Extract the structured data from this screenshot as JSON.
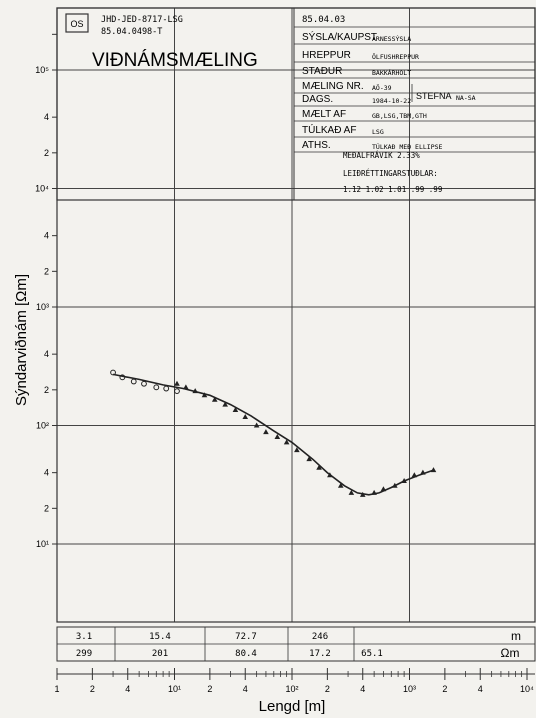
{
  "header": {
    "logo_glyph": "OS",
    "ref_line1": "JHD-JED-8717-LSG",
    "ref_line2": "85.04.0498-T",
    "title": "VIÐNÁMSMÆLING",
    "date_stamp": "85.04.03",
    "fields": [
      {
        "label": "SÝSLA/KAUPST",
        "value": "ÁRNESSÝSLA"
      },
      {
        "label": "HREPPUR",
        "value": "ÖLFUSHREPPUR"
      },
      {
        "label": "STAÐUR",
        "value": "BAKKÁRHOLT"
      },
      {
        "label": "MÆLING NR.",
        "value": "AÖ-39"
      },
      {
        "label": "DAGS.",
        "value": "1984-10-22"
      },
      {
        "label": "MÆLT AF",
        "value": "GB,LSG,TBM,GTH"
      },
      {
        "label": "TÚLKAÐ AF",
        "value": "LSG"
      },
      {
        "label": "ATHS.",
        "value": "TÚLKAÐ MEÐ ELLIPSE"
      }
    ],
    "stefna_label": "STEFNA",
    "stefna_value": "NA-SA",
    "note_lines": [
      "MEÐALFRÁVIK 2.33%",
      "LEIÐRÉTTINGARSTUÐLAR:",
      "1.12 1.02 1.01 .99 .99"
    ]
  },
  "layer_model": {
    "thickness_unit": "m",
    "resistivity_unit": "Ωm",
    "thicknesses": [
      "3.1",
      "15.4",
      "72.7",
      "246"
    ],
    "resistivities": [
      "299",
      "201",
      "80.4",
      "17.2",
      "65.1"
    ]
  },
  "chart_data": {
    "type": "scatter",
    "xlabel": "Lengd [m]",
    "ylabel": "Sýndarviðnám [Ωm]",
    "xscale": "log",
    "yscale": "log",
    "xlim": [
      1,
      10000
    ],
    "ylim": [
      1,
      1000000
    ],
    "x_tick_labels": [
      "1",
      "2",
      "4",
      "10¹",
      "2",
      "4",
      "10²",
      "2",
      "4",
      "10³",
      "2",
      "4",
      "10⁴"
    ],
    "y_tick_labels": [
      "10¹",
      "2",
      "4",
      "10²",
      "2",
      "4",
      "10³",
      "2",
      "4",
      "10⁴",
      "2",
      "4",
      "10⁵"
    ],
    "grid": true,
    "series": [
      {
        "marker": "circle",
        "x": [
          3,
          3.6,
          4.5,
          5.5,
          7,
          8.5,
          10.5
        ],
        "y": [
          280,
          255,
          235,
          225,
          210,
          205,
          195
        ]
      },
      {
        "marker": "triangle",
        "x": [
          10.5,
          12.5,
          15,
          18,
          22,
          27,
          33,
          40,
          50,
          60,
          75,
          90,
          110,
          140,
          170,
          210,
          260,
          320,
          400,
          500,
          600,
          750,
          900,
          1100,
          1300,
          1600
        ],
        "y": [
          225,
          210,
          195,
          180,
          165,
          150,
          135,
          118,
          100,
          88,
          80,
          72,
          62,
          52,
          44,
          38,
          31,
          27,
          26,
          27,
          29,
          31,
          34,
          38,
          40,
          42
        ]
      }
    ],
    "model_curve": {
      "x": [
        3,
        5,
        8,
        12,
        20,
        30,
        45,
        70,
        100,
        150,
        200,
        280,
        360,
        450,
        550,
        700,
        900,
        1200,
        1600
      ],
      "y": [
        270,
        245,
        220,
        205,
        180,
        150,
        120,
        90,
        72,
        52,
        40,
        31,
        27,
        26,
        27,
        30,
        34,
        38,
        42
      ]
    }
  }
}
